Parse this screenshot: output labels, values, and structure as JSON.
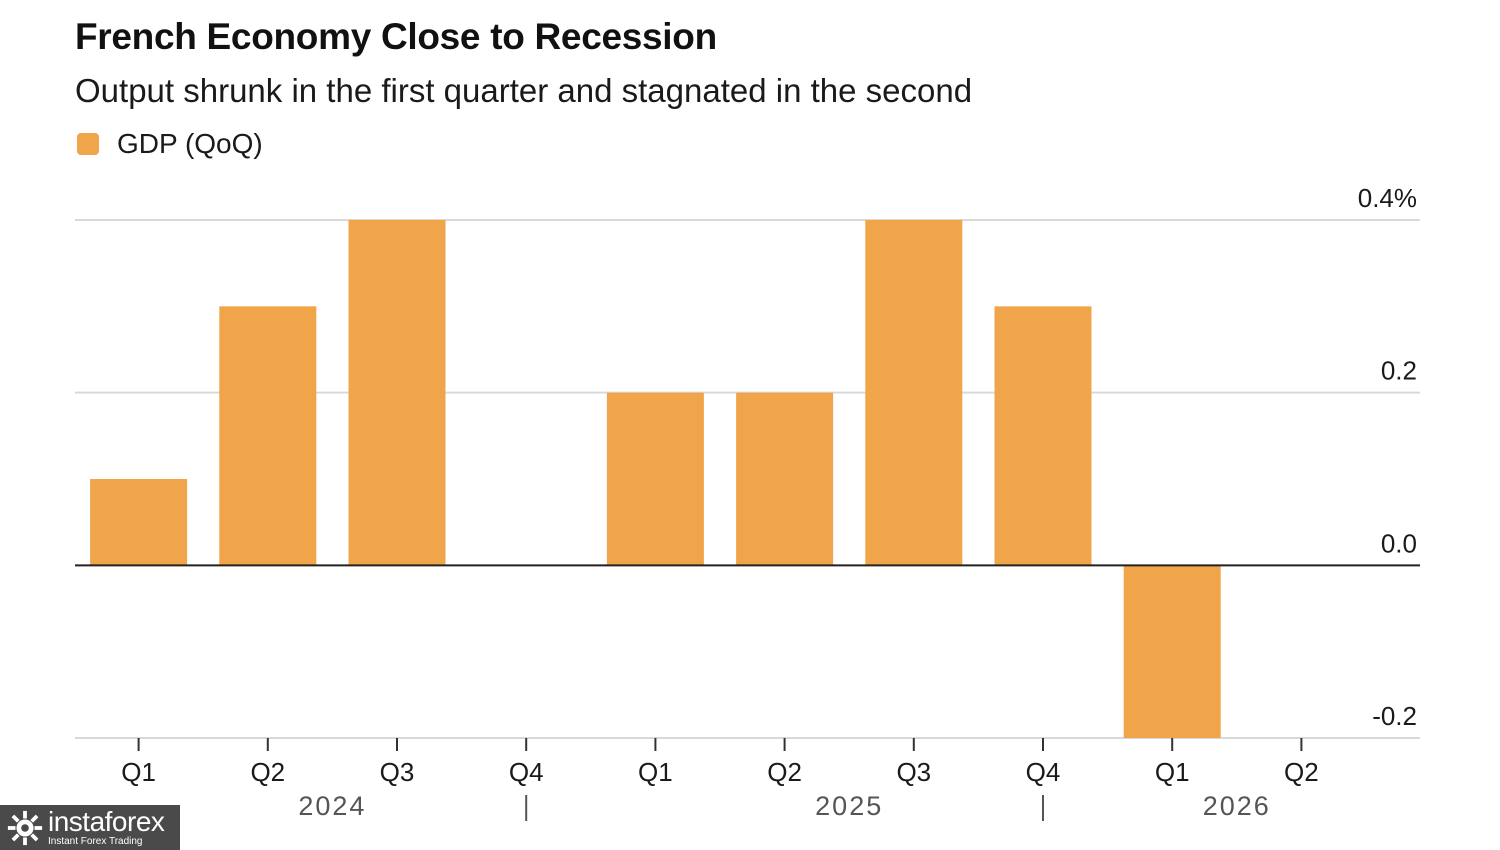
{
  "title": "French Economy Close to Recession",
  "subtitle": "Output shrunk in the first quarter and stagnated in the second",
  "legend": {
    "label": "GDP (QoQ)",
    "color": "#F0A54A"
  },
  "chart_data": {
    "type": "bar",
    "categories": [
      "Q1",
      "Q2",
      "Q3",
      "Q4",
      "Q1",
      "Q2",
      "Q3",
      "Q4",
      "Q1",
      "Q2"
    ],
    "series": [
      {
        "name": "GDP (QoQ)",
        "values": [
          0.1,
          0.3,
          0.4,
          0.0,
          0.2,
          0.2,
          0.4,
          0.3,
          -0.2,
          0.0
        ]
      }
    ],
    "year_labels": [
      {
        "label": "2024",
        "start": 0,
        "end": 3
      },
      {
        "label": "2025",
        "start": 4,
        "end": 7
      },
      {
        "label": "2026",
        "start": 8,
        "end": 9
      }
    ],
    "y_ticks": [
      {
        "value": 0.4,
        "label": "0.4%"
      },
      {
        "value": 0.2,
        "label": "0.2"
      },
      {
        "value": 0.0,
        "label": "0.0"
      },
      {
        "value": -0.2,
        "label": "-0.2"
      }
    ],
    "ylim": [
      -0.2,
      0.4
    ],
    "y_axis_side": "right",
    "grid": true,
    "legend_position": "top-left",
    "colors": {
      "bar": "#F0A54A",
      "grid": "#d9d9d9",
      "zero_line": "#222222",
      "tick_label": "#1a1a1a",
      "year_label": "#555555"
    }
  },
  "watermark": {
    "brand": "instaforex",
    "tagline": "Instant Forex Trading"
  }
}
